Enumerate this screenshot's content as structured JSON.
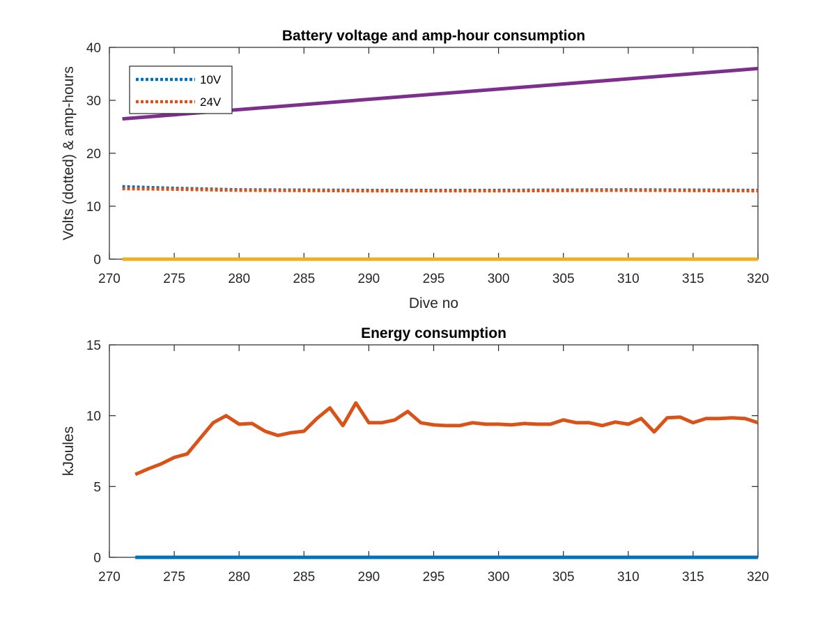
{
  "colors": {
    "blue": "#0072BD",
    "orange": "#D95319",
    "yellow": "#EDB120",
    "purple": "#7E2F8E",
    "axis": "#262626"
  },
  "chart_data": [
    {
      "type": "line",
      "title": "Battery voltage and amp-hour consumption",
      "xlabel": "Dive no",
      "ylabel": "Volts (dotted) & amp-hours",
      "xlim": [
        270,
        320
      ],
      "ylim": [
        0,
        40
      ],
      "xticks": [
        270,
        275,
        280,
        285,
        290,
        295,
        300,
        305,
        310,
        315,
        320
      ],
      "yticks": [
        0,
        10,
        20,
        30,
        40
      ],
      "grid": false,
      "legend": {
        "position": "top-left",
        "entries": [
          "10V",
          "24V"
        ]
      },
      "series": [
        {
          "name": "10V",
          "style": "dotted",
          "color": "#0072BD",
          "x": [
            271,
            275,
            280,
            290,
            300,
            310,
            320
          ],
          "y": [
            13.7,
            13.4,
            13.1,
            13.0,
            13.0,
            13.1,
            13.0
          ]
        },
        {
          "name": "24V",
          "style": "dotted",
          "color": "#D95319",
          "x": [
            271,
            275,
            280,
            290,
            300,
            310,
            320
          ],
          "y": [
            13.3,
            13.2,
            13.0,
            12.9,
            12.9,
            13.0,
            12.9
          ]
        },
        {
          "style": "solid",
          "color": "#EDB120",
          "x": [
            271,
            320
          ],
          "y": [
            0,
            0
          ]
        },
        {
          "style": "solid",
          "color": "#7E2F8E",
          "x": [
            271,
            320
          ],
          "y": [
            26.5,
            36.0
          ]
        }
      ]
    },
    {
      "type": "line",
      "title": "Energy consumption",
      "xlabel": "",
      "ylabel": "kJoules",
      "xlim": [
        270,
        320
      ],
      "ylim": [
        0,
        15
      ],
      "xticks": [
        270,
        275,
        280,
        285,
        290,
        295,
        300,
        305,
        310,
        315,
        320
      ],
      "yticks": [
        0,
        5,
        10,
        15
      ],
      "grid": false,
      "series": [
        {
          "style": "solid",
          "color": "#0072BD",
          "x": [
            272,
            320
          ],
          "y": [
            0,
            0
          ]
        },
        {
          "style": "solid",
          "color": "#D95319",
          "x": [
            272,
            273,
            274,
            275,
            276,
            277,
            278,
            279,
            280,
            281,
            282,
            283,
            284,
            285,
            286,
            287,
            288,
            289,
            290,
            291,
            292,
            293,
            294,
            295,
            296,
            297,
            298,
            299,
            300,
            301,
            302,
            303,
            304,
            305,
            306,
            307,
            308,
            309,
            310,
            311,
            312,
            313,
            314,
            315,
            316,
            317,
            318,
            319,
            320
          ],
          "y": [
            5.85,
            6.25,
            6.6,
            7.05,
            7.3,
            8.4,
            9.5,
            10.0,
            9.4,
            9.45,
            8.9,
            8.6,
            8.8,
            8.9,
            9.8,
            10.55,
            9.3,
            10.9,
            9.5,
            9.5,
            9.7,
            10.3,
            9.5,
            9.35,
            9.3,
            9.3,
            9.5,
            9.4,
            9.4,
            9.35,
            9.45,
            9.4,
            9.4,
            9.7,
            9.5,
            9.5,
            9.3,
            9.55,
            9.4,
            9.8,
            8.85,
            9.85,
            9.9,
            9.5,
            9.8,
            9.8,
            9.85,
            9.8,
            9.5
          ]
        }
      ]
    }
  ]
}
